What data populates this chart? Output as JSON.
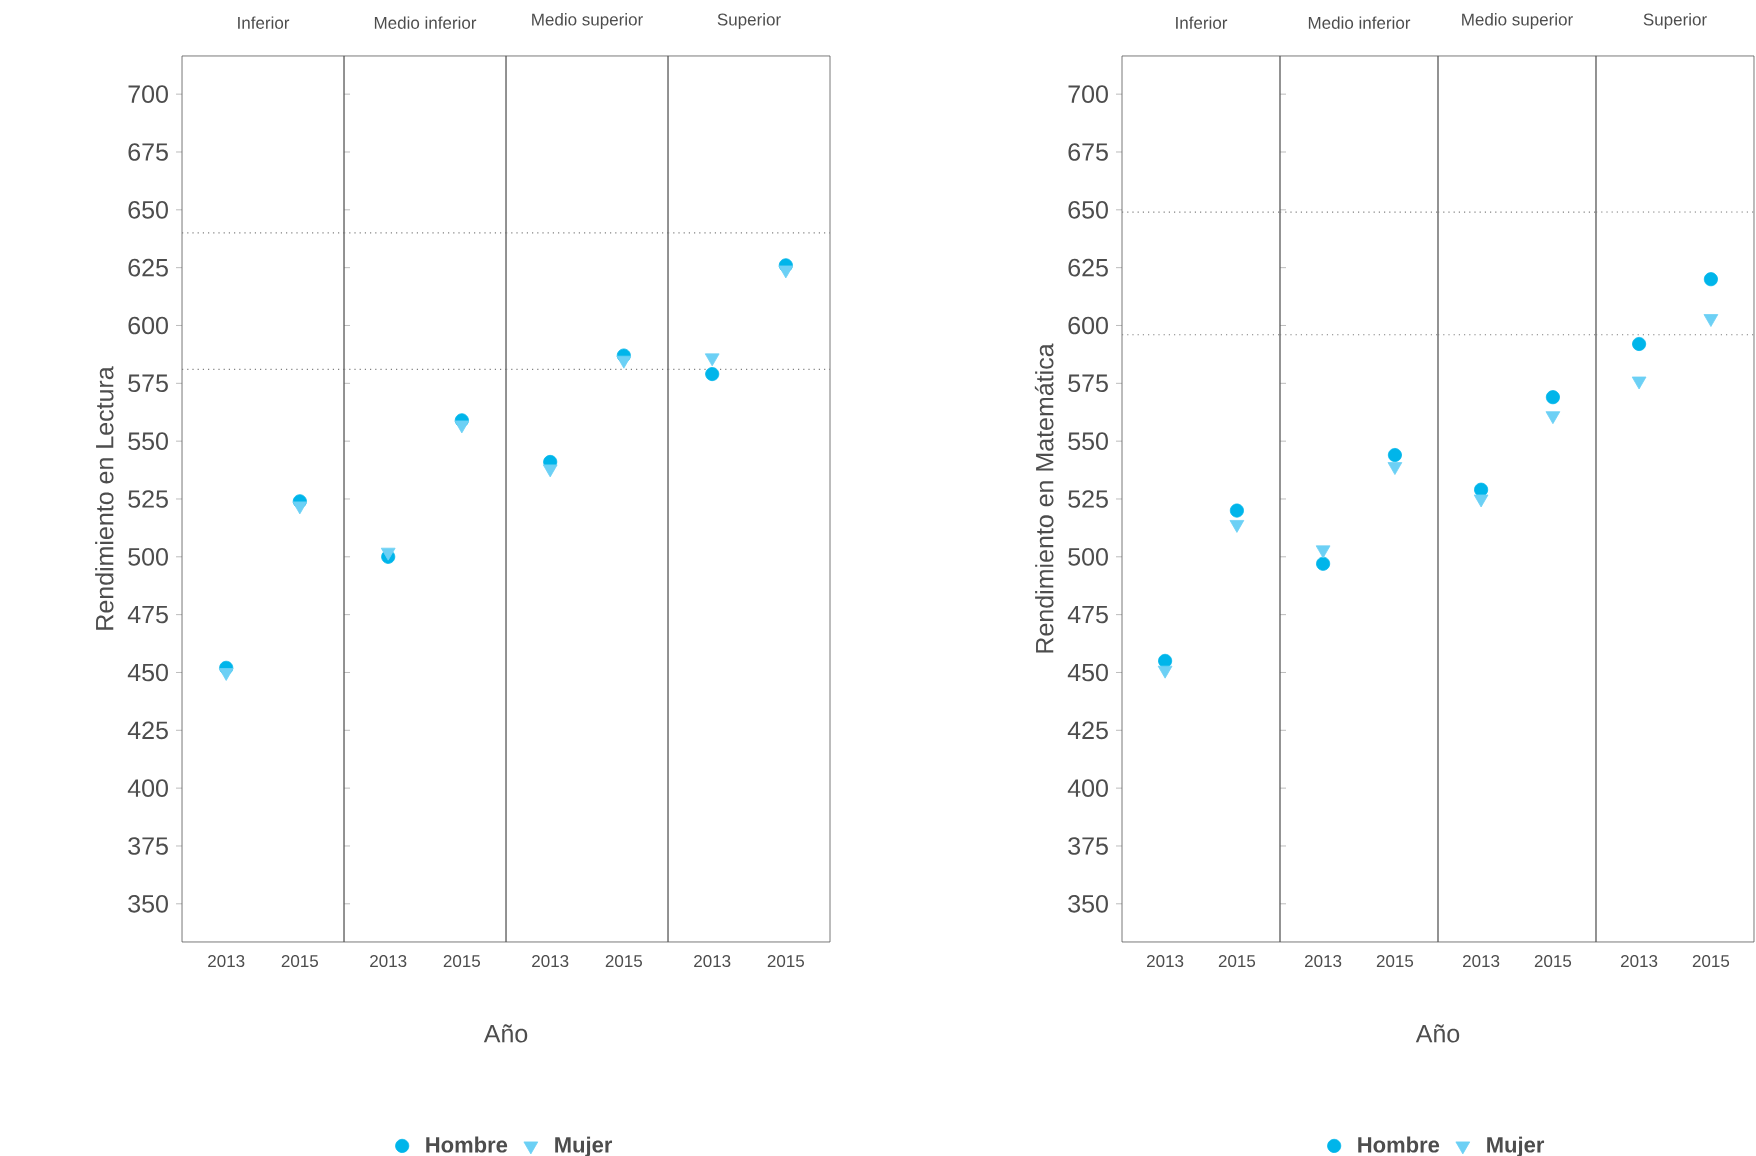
{
  "chart_data": [
    {
      "type": "scatter",
      "title": "Inferior",
      "ylabel": "Rendimiento en Lectura",
      "xlabel": "Año",
      "legend": "bottom",
      "categories": [
        "2013",
        "2015"
      ],
      "ylim": [
        333.5,
        716.5
      ],
      "yticks": [
        350,
        375,
        400,
        425,
        450,
        475,
        500,
        525,
        550,
        575,
        600,
        625,
        650,
        675,
        700
      ],
      "ref_lines": [
        {
          "axis": "y",
          "value": 640,
          "line_style": "dotted",
          "color": "#808080"
        },
        {
          "axis": "y",
          "value": 581,
          "line_style": "dotted",
          "color": "#808080"
        }
      ],
      "series": [
        {
          "name": "Hombre",
          "color": "#00b5ea",
          "marker": "circle",
          "values": [
            452,
            524
          ]
        },
        {
          "name": "Mujer",
          "color": "#6cd0f5",
          "marker": "triangle",
          "values": [
            450,
            522
          ]
        }
      ]
    },
    {
      "type": "scatter",
      "title": "Medio inferior",
      "tick_labels": "x",
      "categories": [
        "2013",
        "2015"
      ],
      "ylim": [
        333.5,
        716.5
      ],
      "ref_lines": [
        {
          "axis": "y",
          "value": 640,
          "line_style": "dotted",
          "color": "#808080"
        },
        {
          "axis": "y",
          "value": 581,
          "line_style": "dotted",
          "color": "#808080"
        }
      ],
      "series": [
        {
          "color": "#00b5ea",
          "marker": "circle",
          "values": [
            500,
            559
          ]
        },
        {
          "color": "#6cd0f5",
          "marker": "triangle",
          "values": [
            502,
            557
          ]
        }
      ]
    },
    {
      "type": "scatter",
      "title": "Medio superior",
      "tick_labels": "x",
      "categories": [
        "2013",
        "2015"
      ],
      "ylim": [
        333.5,
        716.5
      ],
      "ref_lines": [
        {
          "axis": "y",
          "value": 640,
          "line_style": "dotted",
          "color": "#808080"
        },
        {
          "axis": "y",
          "value": 581,
          "line_style": "dotted",
          "color": "#808080"
        }
      ],
      "series": [
        {
          "color": "#00b5ea",
          "marker": "circle",
          "values": [
            541,
            587
          ]
        },
        {
          "color": "#6cd0f5",
          "marker": "triangle",
          "values": [
            538,
            585
          ]
        }
      ]
    },
    {
      "type": "scatter",
      "title": "Superior",
      "tick_labels": "x",
      "categories": [
        "2013",
        "2015"
      ],
      "ylim": [
        333.5,
        716.5
      ],
      "ref_lines": [
        {
          "axis": "y",
          "value": 640,
          "line_style": "dotted",
          "color": "#808080"
        },
        {
          "axis": "y",
          "value": 581,
          "line_style": "dotted",
          "color": "#808080"
        }
      ],
      "series": [
        {
          "color": "#00b5ea",
          "marker": "circle",
          "values": [
            579,
            626
          ]
        },
        {
          "color": "#6cd0f5",
          "marker": "triangle",
          "values": [
            586,
            624
          ]
        }
      ]
    },
    {
      "type": "scatter",
      "title": "Inferior",
      "ylabel": "Rendimiento en Matemática",
      "xlabel": "Año",
      "legend": "bottom",
      "categories": [
        "2013",
        "2015"
      ],
      "ylim": [
        333.5,
        716.5
      ],
      "yticks": [
        350,
        375,
        400,
        425,
        450,
        475,
        500,
        525,
        550,
        575,
        600,
        625,
        650,
        675,
        700
      ],
      "ref_lines": [
        {
          "axis": "y",
          "value": 649,
          "line_style": "dotted",
          "color": "#808080"
        },
        {
          "axis": "y",
          "value": 596,
          "line_style": "dotted",
          "color": "#808080"
        }
      ],
      "series": [
        {
          "name": "Hombre",
          "color": "#00b5ea",
          "marker": "circle",
          "values": [
            455,
            520
          ]
        },
        {
          "name": "Mujer",
          "color": "#6cd0f5",
          "marker": "triangle",
          "values": [
            451,
            514
          ]
        }
      ]
    },
    {
      "type": "scatter",
      "title": "Medio inferior",
      "tick_labels": "x",
      "categories": [
        "2013",
        "2015"
      ],
      "ylim": [
        333.5,
        716.5
      ],
      "ref_lines": [
        {
          "axis": "y",
          "value": 649,
          "line_style": "dotted",
          "color": "#808080"
        },
        {
          "axis": "y",
          "value": 596,
          "line_style": "dotted",
          "color": "#808080"
        }
      ],
      "series": [
        {
          "color": "#00b5ea",
          "marker": "circle",
          "values": [
            497,
            544
          ]
        },
        {
          "color": "#6cd0f5",
          "marker": "triangle",
          "values": [
            503,
            539
          ]
        }
      ]
    },
    {
      "type": "scatter",
      "title": "Medio superior",
      "tick_labels": "x",
      "categories": [
        "2013",
        "2015"
      ],
      "ylim": [
        333.5,
        716.5
      ],
      "ref_lines": [
        {
          "axis": "y",
          "value": 649,
          "line_style": "dotted",
          "color": "#808080"
        },
        {
          "axis": "y",
          "value": 596,
          "line_style": "dotted",
          "color": "#808080"
        }
      ],
      "series": [
        {
          "color": "#00b5ea",
          "marker": "circle",
          "values": [
            529,
            569
          ]
        },
        {
          "color": "#6cd0f5",
          "marker": "triangle",
          "values": [
            525,
            561
          ]
        }
      ]
    },
    {
      "type": "scatter",
      "title": "Superior",
      "tick_labels": "x",
      "categories": [
        "2013",
        "2015"
      ],
      "ylim": [
        333.5,
        716.5
      ],
      "ref_lines": [
        {
          "axis": "y",
          "value": 649,
          "line_style": "dotted",
          "color": "#808080"
        },
        {
          "axis": "y",
          "value": 596,
          "line_style": "dotted",
          "color": "#808080"
        }
      ],
      "series": [
        {
          "color": "#00b5ea",
          "marker": "circle",
          "values": [
            592,
            620
          ]
        },
        {
          "color": "#6cd0f5",
          "marker": "triangle",
          "values": [
            576,
            603
          ]
        }
      ]
    }
  ]
}
